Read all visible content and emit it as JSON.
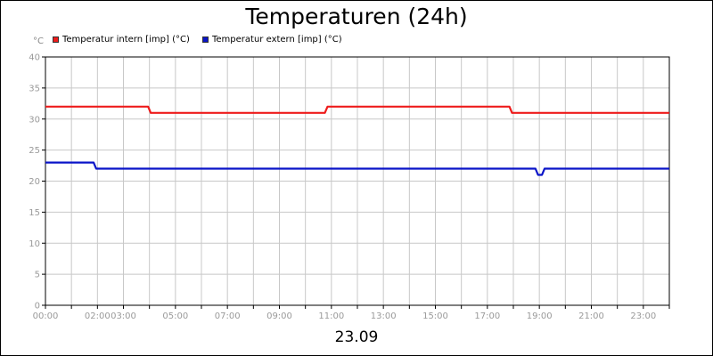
{
  "chart_data": {
    "type": "line",
    "title": "Temperaturen (24h)",
    "date_label": "23.09",
    "y_unit": "°C",
    "xlabel": "",
    "ylabel": "",
    "grid": true,
    "legend_position": "top-left",
    "ylim": [
      0,
      40
    ],
    "xlim": [
      0,
      24
    ],
    "y_ticks": [
      "0",
      "5",
      "10",
      "15",
      "20",
      "25",
      "30",
      "35",
      "40"
    ],
    "x_ticks": [
      {
        "label": "00:00",
        "value": 0
      },
      {
        "label": "02:00",
        "value": 2
      },
      {
        "label": "03:00",
        "value": 3
      },
      {
        "label": "05:00",
        "value": 5
      },
      {
        "label": "07:00",
        "value": 7
      },
      {
        "label": "09:00",
        "value": 9
      },
      {
        "label": "11:00",
        "value": 11
      },
      {
        "label": "13:00",
        "value": 13
      },
      {
        "label": "15:00",
        "value": 15
      },
      {
        "label": "17:00",
        "value": 17
      },
      {
        "label": "19:00",
        "value": 19
      },
      {
        "label": "21:00",
        "value": 21
      },
      {
        "label": "23:00",
        "value": 23
      }
    ],
    "series": [
      {
        "name": "Temperatur intern [imp] (°C)",
        "color": "#ee1c1c",
        "x": [
          0,
          3.95,
          4.05,
          10.75,
          10.85,
          17.85,
          17.95,
          24
        ],
        "y": [
          32,
          32,
          31,
          31,
          32,
          32,
          31,
          31
        ]
      },
      {
        "name": "Temperatur extern [imp] (°C)",
        "color": "#0a14c8",
        "x": [
          0,
          1.85,
          1.95,
          18.85,
          18.95,
          19.1,
          19.2,
          24
        ],
        "y": [
          23,
          23,
          22,
          22,
          21,
          21,
          22,
          22
        ]
      }
    ]
  }
}
